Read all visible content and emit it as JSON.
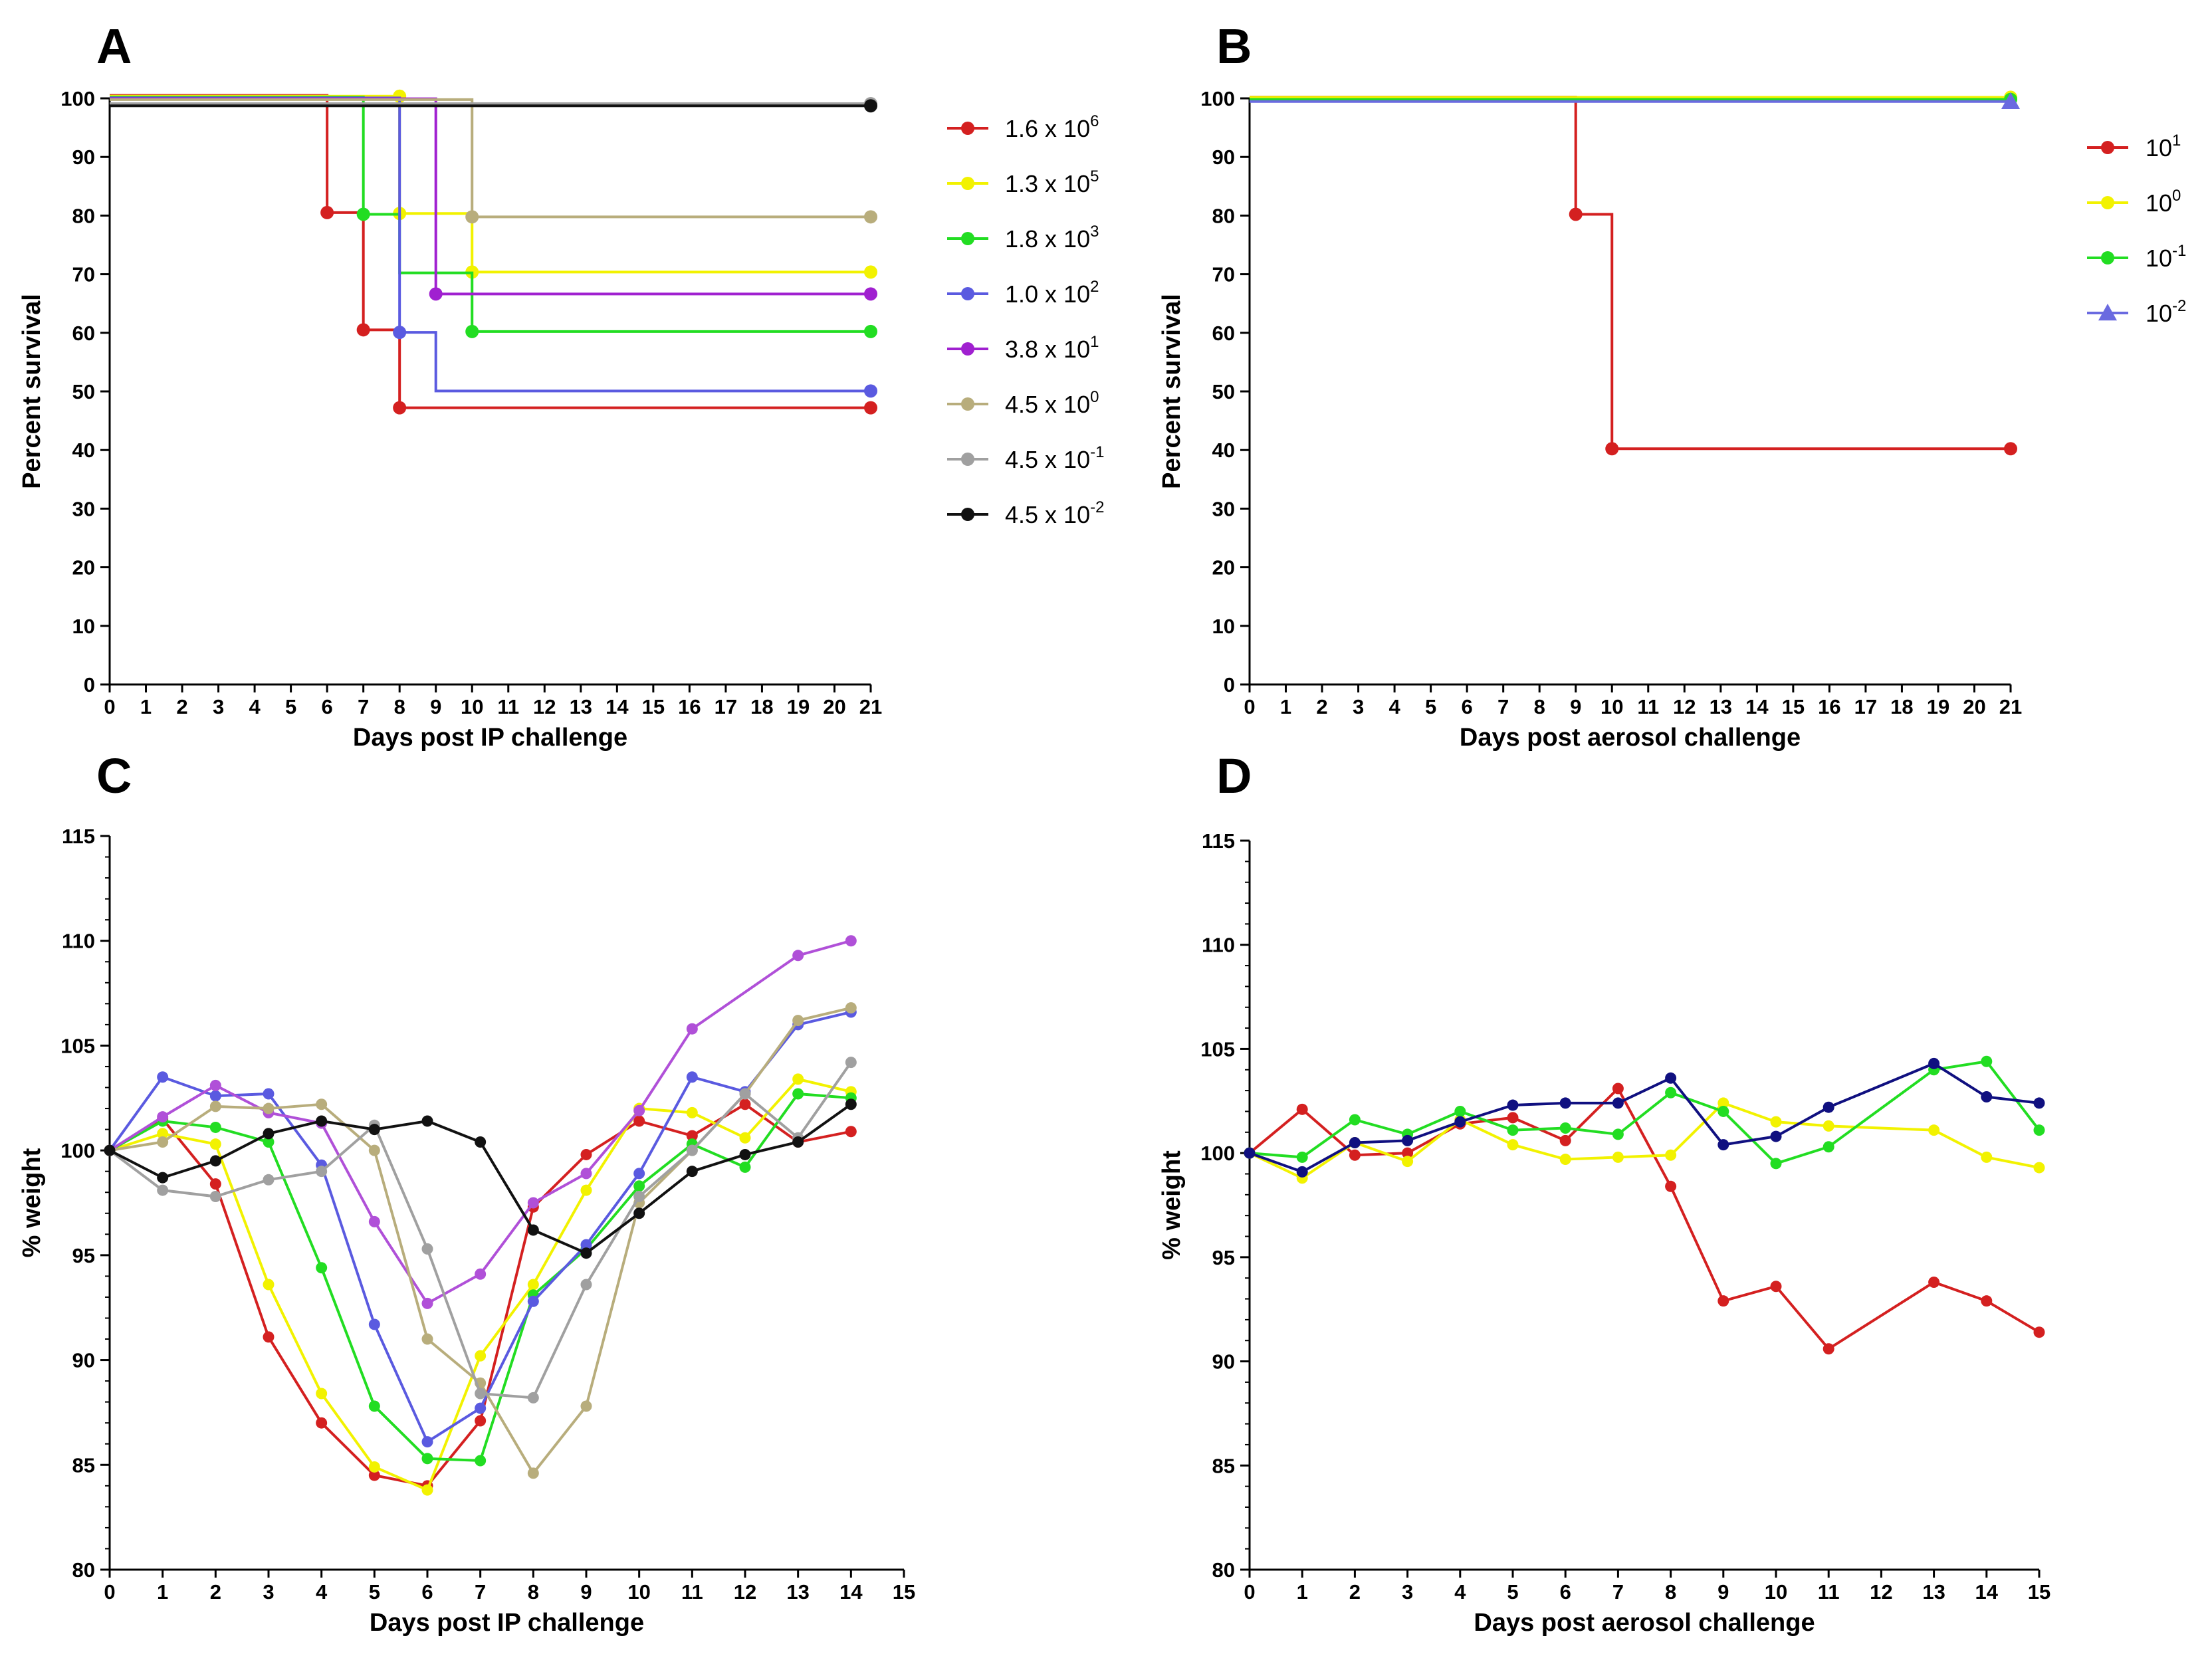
{
  "chart_data": [
    {
      "panel": "A",
      "type": "line",
      "subtype": "kaplan-meier",
      "xlabel": "Days post IP challenge",
      "ylabel": "Percent survival",
      "xlim": [
        0,
        21
      ],
      "ylim": [
        0,
        100
      ],
      "xticks": [
        0,
        1,
        2,
        3,
        4,
        5,
        6,
        7,
        8,
        9,
        10,
        11,
        12,
        13,
        14,
        15,
        16,
        17,
        18,
        19,
        20,
        21
      ],
      "yticks": [
        0,
        10,
        20,
        30,
        40,
        50,
        60,
        70,
        80,
        90,
        100
      ],
      "legend_position": "right",
      "series": [
        {
          "name": "1.6 x 10",
          "exp": "6",
          "color": "#d42020",
          "marker": "circle",
          "steps": [
            [
              0,
              100
            ],
            [
              6,
              80
            ],
            [
              7,
              60
            ],
            [
              8,
              46.7
            ],
            [
              21,
              46.7
            ]
          ],
          "points": [
            [
              6,
              80
            ],
            [
              7,
              60
            ],
            [
              8,
              46.7
            ],
            [
              21,
              46.7
            ]
          ]
        },
        {
          "name": "1.3 x 10",
          "exp": "5",
          "color": "#f2f200",
          "marker": "circle",
          "steps": [
            [
              0,
              100
            ],
            [
              8,
              80
            ],
            [
              10,
              70
            ],
            [
              21,
              70
            ]
          ],
          "points": [
            [
              8,
              100
            ],
            [
              8,
              80
            ],
            [
              10,
              70
            ],
            [
              21,
              70
            ]
          ]
        },
        {
          "name": "1.8 x 10",
          "exp": "3",
          "color": "#22dd22",
          "marker": "circle",
          "steps": [
            [
              0,
              100
            ],
            [
              7,
              80
            ],
            [
              8,
              70
            ],
            [
              10,
              60
            ],
            [
              21,
              60
            ]
          ],
          "points": [
            [
              7,
              80
            ],
            [
              10,
              60
            ],
            [
              21,
              60
            ]
          ]
        },
        {
          "name": "1.0 x 10",
          "exp": "2",
          "color": "#5a5ae0",
          "marker": "circle",
          "steps": [
            [
              0,
              100
            ],
            [
              8,
              60
            ],
            [
              9,
              50
            ],
            [
              21,
              50
            ]
          ],
          "points": [
            [
              8,
              60
            ],
            [
              21,
              50
            ]
          ]
        },
        {
          "name": "3.8 x 10",
          "exp": "1",
          "color": "#a020d0",
          "marker": "circle",
          "steps": [
            [
              0,
              100
            ],
            [
              9,
              66.7
            ],
            [
              21,
              66.7
            ]
          ],
          "points": [
            [
              9,
              66.7
            ],
            [
              21,
              66.7
            ]
          ]
        },
        {
          "name": "4.5 x 10",
          "exp": "0",
          "color": "#b8ad7c",
          "marker": "circle",
          "steps": [
            [
              0,
              100
            ],
            [
              10,
              80
            ],
            [
              21,
              80
            ]
          ],
          "points": [
            [
              10,
              80
            ],
            [
              21,
              80
            ]
          ]
        },
        {
          "name": "4.5 x 10",
          "exp": "-1",
          "color": "#a0a0a0",
          "marker": "circle",
          "steps": [
            [
              0,
              100
            ],
            [
              21,
              100
            ]
          ],
          "points": [
            [
              21,
              100
            ]
          ]
        },
        {
          "name": "4.5 x 10",
          "exp": "-2",
          "color": "#111111",
          "marker": "circle",
          "steps": [
            [
              0,
              100
            ],
            [
              21,
              100
            ]
          ],
          "points": [
            [
              21,
              100
            ]
          ]
        }
      ]
    },
    {
      "panel": "B",
      "type": "line",
      "subtype": "kaplan-meier",
      "xlabel": "Days post aerosol challenge",
      "ylabel": "Percent survival",
      "xlim": [
        0,
        21
      ],
      "ylim": [
        0,
        100
      ],
      "xticks": [
        0,
        1,
        2,
        3,
        4,
        5,
        6,
        7,
        8,
        9,
        10,
        11,
        12,
        13,
        14,
        15,
        16,
        17,
        18,
        19,
        20,
        21
      ],
      "yticks": [
        0,
        10,
        20,
        30,
        40,
        50,
        60,
        70,
        80,
        90,
        100
      ],
      "legend_position": "right",
      "series": [
        {
          "name": "10",
          "exp": "1",
          "color": "#d42020",
          "marker": "circle",
          "steps": [
            [
              0,
              100
            ],
            [
              9,
              80
            ],
            [
              10,
              40
            ],
            [
              21,
              40
            ]
          ],
          "points": [
            [
              9,
              80
            ],
            [
              10,
              40
            ],
            [
              21,
              40
            ]
          ]
        },
        {
          "name": "10",
          "exp": "0",
          "color": "#f2f200",
          "marker": "circle",
          "steps": [
            [
              0,
              100
            ],
            [
              21,
              100
            ]
          ],
          "points": [
            [
              21,
              100
            ]
          ]
        },
        {
          "name": "10",
          "exp": "-1",
          "color": "#22dd22",
          "marker": "circle",
          "steps": [
            [
              0,
              100
            ],
            [
              21,
              100
            ]
          ],
          "points": [
            [
              21,
              100
            ]
          ]
        },
        {
          "name": "10",
          "exp": "-2",
          "color": "#6a6ae0",
          "marker": "triangle",
          "steps": [
            [
              0,
              100
            ],
            [
              21,
              100
            ]
          ],
          "points": [
            [
              21,
              100
            ]
          ]
        }
      ]
    },
    {
      "panel": "C",
      "type": "line",
      "xlabel": "Days post IP challenge",
      "ylabel": "% weight",
      "xlim": [
        0,
        15
      ],
      "ylim": [
        80,
        115
      ],
      "xticks": [
        0,
        1,
        2,
        3,
        4,
        5,
        6,
        7,
        8,
        9,
        10,
        11,
        12,
        13,
        14,
        15
      ],
      "yticks": [
        80,
        85,
        90,
        95,
        100,
        105,
        110,
        115
      ],
      "series": [
        {
          "name": "1.6 x 10^6",
          "color": "#d42020",
          "x": [
            0,
            1,
            2,
            3,
            4,
            5,
            6,
            7,
            8,
            9,
            10,
            11,
            12,
            13,
            14
          ],
          "values": [
            100,
            101.5,
            98.4,
            91.1,
            87.0,
            84.5,
            84.0,
            87.1,
            97.3,
            99.8,
            101.4,
            100.7,
            102.2,
            100.4,
            100.9
          ]
        },
        {
          "name": "1.3 x 10^5",
          "color": "#f2f200",
          "x": [
            0,
            1,
            2,
            3,
            4,
            5,
            6,
            7,
            8,
            9,
            10,
            11,
            12,
            13,
            14
          ],
          "values": [
            100,
            100.8,
            100.3,
            93.6,
            88.4,
            84.9,
            83.8,
            90.2,
            93.6,
            98.1,
            102.0,
            101.8,
            100.6,
            103.4,
            102.8
          ]
        },
        {
          "name": "1.8 x 10^3",
          "color": "#22dd22",
          "x": [
            0,
            1,
            2,
            3,
            4,
            5,
            6,
            7,
            8,
            9,
            10,
            11,
            12,
            13,
            14
          ],
          "values": [
            100,
            101.4,
            101.1,
            100.4,
            94.4,
            87.8,
            85.3,
            85.2,
            93.1,
            95.3,
            98.3,
            100.3,
            99.2,
            102.7,
            102.5
          ]
        },
        {
          "name": "1.0 x 10^2",
          "color": "#5a5ae0",
          "x": [
            0,
            1,
            2,
            3,
            4,
            5,
            6,
            7,
            8,
            9,
            10,
            11,
            12,
            13,
            14
          ],
          "values": [
            100,
            103.5,
            102.6,
            102.7,
            99.3,
            91.7,
            86.1,
            87.7,
            92.8,
            95.5,
            98.9,
            103.5,
            102.8,
            106.0,
            106.6
          ]
        },
        {
          "name": "3.8 x 10^1",
          "color": "#b050d8",
          "x": [
            0,
            1,
            2,
            3,
            4,
            5,
            6,
            7,
            8,
            9,
            10,
            11,
            12,
            13,
            14
          ],
          "values": [
            100,
            101.6,
            103.1,
            101.8,
            101.3,
            96.6,
            92.7,
            94.1,
            97.5,
            98.9,
            101.9,
            105.8,
            null,
            109.3,
            110.0
          ]
        },
        {
          "name": "4.5 x 10^0",
          "color": "#b8ad7c",
          "x": [
            0,
            1,
            2,
            3,
            4,
            5,
            6,
            7,
            8,
            9,
            10,
            11,
            12,
            13,
            14
          ],
          "values": [
            100,
            100.4,
            102.1,
            102.0,
            102.2,
            100.0,
            91.0,
            88.9,
            84.6,
            87.8,
            97.5,
            100.0,
            102.7,
            106.2,
            106.8
          ]
        },
        {
          "name": "4.5 x 10^-1",
          "color": "#a0a0a0",
          "x": [
            0,
            1,
            2,
            3,
            4,
            5,
            6,
            7,
            8,
            9,
            10,
            11,
            12,
            13,
            14
          ],
          "values": [
            100,
            98.1,
            97.8,
            98.6,
            99.0,
            101.2,
            95.3,
            88.4,
            88.2,
            93.6,
            97.8,
            100.0,
            102.7,
            100.6,
            104.2
          ]
        },
        {
          "name": "4.5 x 10^-2",
          "color": "#111111",
          "x": [
            0,
            1,
            2,
            3,
            4,
            5,
            6,
            7,
            8,
            9,
            10,
            11,
            12,
            13,
            14
          ],
          "values": [
            100,
            98.7,
            99.5,
            100.8,
            101.4,
            101.0,
            101.4,
            100.4,
            96.2,
            95.1,
            97.0,
            99.0,
            99.8,
            100.4,
            102.2
          ]
        }
      ]
    },
    {
      "panel": "D",
      "type": "line",
      "xlabel": "Days post aerosol challenge",
      "ylabel": "% weight",
      "xlim": [
        0,
        15
      ],
      "ylim": [
        80,
        115
      ],
      "xticks": [
        0,
        1,
        2,
        3,
        4,
        5,
        6,
        7,
        8,
        9,
        10,
        11,
        12,
        13,
        14,
        15
      ],
      "yticks": [
        80,
        85,
        90,
        95,
        100,
        105,
        110,
        115
      ],
      "series": [
        {
          "name": "10^1",
          "color": "#d42020",
          "x": [
            0,
            1,
            2,
            3,
            4,
            5,
            6,
            7,
            8,
            9,
            10,
            11,
            13,
            14,
            15
          ],
          "values": [
            100,
            102.1,
            99.9,
            100.0,
            101.4,
            101.7,
            100.6,
            103.1,
            98.4,
            92.9,
            93.6,
            90.6,
            93.8,
            92.9,
            91.4
          ]
        },
        {
          "name": "10^0",
          "color": "#f2f200",
          "x": [
            0,
            1,
            2,
            3,
            4,
            5,
            6,
            7,
            8,
            9,
            10,
            11,
            13,
            14,
            15
          ],
          "values": [
            100,
            98.8,
            100.5,
            99.6,
            101.6,
            100.4,
            99.7,
            99.8,
            99.9,
            102.4,
            101.5,
            101.3,
            101.1,
            99.8,
            99.3
          ]
        },
        {
          "name": "10^-1",
          "color": "#22dd22",
          "x": [
            0,
            1,
            2,
            3,
            4,
            5,
            6,
            7,
            8,
            9,
            10,
            11,
            13,
            14,
            15
          ],
          "values": [
            100,
            99.8,
            101.6,
            100.9,
            102.0,
            101.1,
            101.2,
            100.9,
            102.9,
            102.0,
            99.5,
            100.3,
            104.0,
            104.4,
            101.1
          ]
        },
        {
          "name": "10^-2",
          "color": "#101080",
          "x": [
            0,
            1,
            2,
            3,
            4,
            5,
            6,
            7,
            8,
            9,
            10,
            11,
            13,
            14,
            15
          ],
          "values": [
            100,
            99.1,
            100.5,
            100.6,
            101.5,
            102.3,
            102.4,
            102.4,
            103.6,
            100.4,
            100.8,
            102.2,
            104.3,
            102.7,
            102.4
          ]
        }
      ]
    }
  ]
}
